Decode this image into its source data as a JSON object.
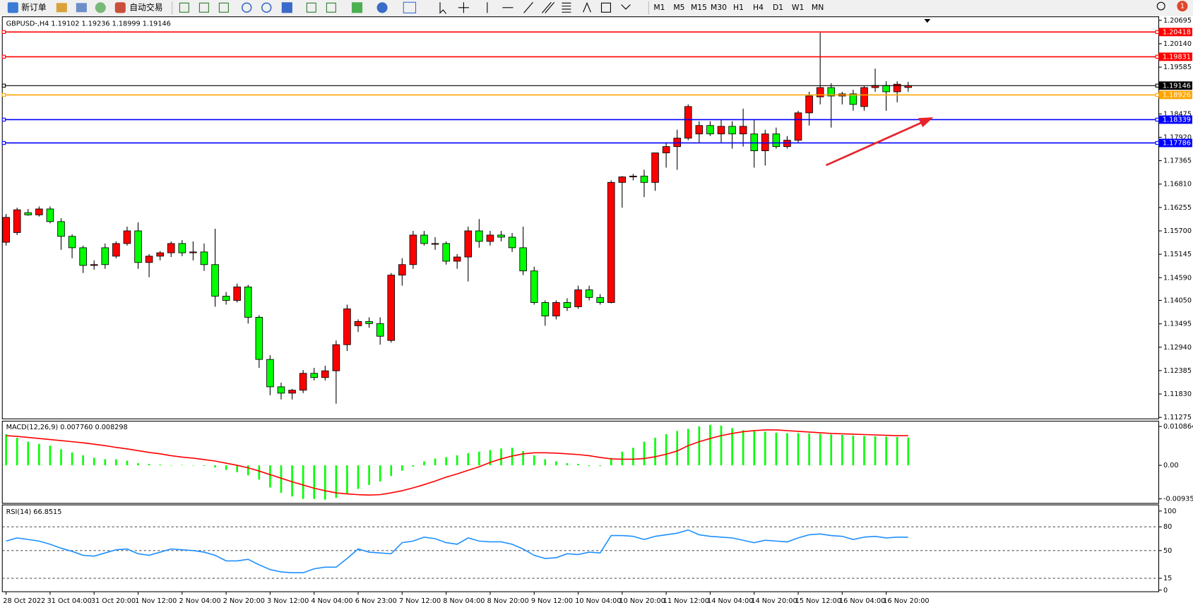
{
  "toolbar": {
    "new_order": "新订单",
    "auto_trading": "自动交易",
    "timeframes": [
      "M1",
      "M5",
      "M15",
      "M30",
      "H1",
      "H4",
      "D1",
      "W1",
      "MN"
    ],
    "notifications": 1
  },
  "chart_data": [
    {
      "type": "candlestick",
      "title": "GBPUSD-,H4  1.19102 1.19236 1.18999 1.19146",
      "categories": [
        "28 Oct 2022",
        null,
        null,
        null,
        "31 Oct 04:00",
        null,
        null,
        null,
        "31 Oct 20:00",
        null,
        null,
        null,
        "1 Nov 12:00",
        null,
        null,
        null,
        "2 Nov 04:00",
        null,
        null,
        null,
        "2 Nov 20:00",
        null,
        null,
        null,
        "3 Nov 12:00",
        null,
        null,
        null,
        "4 Nov 04:00",
        null,
        null,
        null,
        "6 Nov 23:00",
        null,
        null,
        null,
        "7 Nov 12:00",
        null,
        null,
        null,
        "8 Nov 04:00",
        null,
        null,
        null,
        "8 Nov 20:00",
        null,
        null,
        null,
        "9 Nov 12:00",
        null,
        null,
        null,
        "10 Nov 04:00",
        null,
        null,
        null,
        "10 Nov 20:00",
        null,
        null,
        null,
        "11 Nov 12:00",
        null,
        null,
        null,
        "14 Nov 04:00",
        null,
        null,
        null,
        "14 Nov 20:00",
        null,
        null,
        null,
        "15 Nov 12:00",
        null,
        null,
        null,
        "16 Nov 04:00",
        null,
        null,
        null,
        "16 Nov 20:00",
        null,
        null
      ],
      "open": [
        1.1543,
        1.1566,
        1.1613,
        1.1608,
        1.1622,
        1.1592,
        1.1557,
        1.153,
        1.1488,
        1.153,
        1.151,
        1.154,
        1.157,
        1.1495,
        1.151,
        1.1518,
        1.154,
        1.1518,
        1.152,
        1.149,
        1.1415,
        1.1405,
        1.1437,
        1.1365,
        1.1265,
        1.12,
        1.1185,
        1.1192,
        1.1232,
        1.1222,
        1.1238,
        1.13,
        1.1345,
        1.1355,
        1.135,
        1.131,
        1.1465,
        1.149,
        1.156,
        1.154,
        1.154,
        1.1498,
        1.1508,
        1.157,
        1.1545,
        1.156,
        1.1555,
        1.153,
        1.1475,
        1.14,
        1.1368,
        1.14,
        1.139,
        1.143,
        1.1412,
        1.14,
        1.1685,
        1.1698,
        1.17,
        1.1685,
        1.1755,
        1.177,
        1.179,
        1.18,
        1.182,
        1.18,
        1.1818,
        1.18,
        1.18,
        1.176,
        1.18,
        1.177,
        1.1785,
        1.185,
        1.1888,
        1.191,
        1.189,
        1.1895,
        1.1865,
        1.191,
        1.1915,
        1.19,
        1.19102
      ],
      "high": [
        1.161,
        1.1625,
        1.1622,
        1.1628,
        1.1628,
        1.16,
        1.1562,
        1.1535,
        1.15,
        1.154,
        1.1545,
        1.158,
        1.159,
        1.1515,
        1.1522,
        1.1545,
        1.1548,
        1.1545,
        1.154,
        1.1575,
        1.1425,
        1.1445,
        1.1442,
        1.137,
        1.1275,
        1.121,
        1.1195,
        1.124,
        1.1245,
        1.125,
        1.131,
        1.1395,
        1.136,
        1.1365,
        1.1365,
        1.147,
        1.1505,
        1.157,
        1.157,
        1.1555,
        1.1545,
        1.1515,
        1.158,
        1.1598,
        1.157,
        1.157,
        1.1565,
        1.158,
        1.1485,
        1.1405,
        1.1405,
        1.141,
        1.144,
        1.144,
        1.142,
        1.169,
        1.17,
        1.1705,
        1.1715,
        1.1755,
        1.178,
        1.181,
        1.187,
        1.183,
        1.183,
        1.1835,
        1.183,
        1.186,
        1.1835,
        1.181,
        1.1815,
        1.1795,
        1.1855,
        1.19,
        1.204,
        1.192,
        1.19,
        1.1905,
        1.1915,
        1.1955,
        1.1925,
        1.1925,
        1.19236
      ],
      "low": [
        1.1535,
        1.156,
        1.1606,
        1.1604,
        1.1588,
        1.1525,
        1.1505,
        1.147,
        1.1478,
        1.148,
        1.1505,
        1.1535,
        1.148,
        1.146,
        1.15,
        1.1508,
        1.151,
        1.15,
        1.1475,
        1.139,
        1.1395,
        1.14,
        1.135,
        1.1245,
        1.118,
        1.117,
        1.117,
        1.1185,
        1.1215,
        1.1215,
        1.116,
        1.1285,
        1.133,
        1.134,
        1.13,
        1.1305,
        1.144,
        1.148,
        1.1535,
        1.1525,
        1.149,
        1.148,
        1.145,
        1.153,
        1.1535,
        1.1545,
        1.152,
        1.1465,
        1.1395,
        1.1345,
        1.136,
        1.138,
        1.1385,
        1.1405,
        1.1395,
        1.1398,
        1.1625,
        1.169,
        1.165,
        1.1665,
        1.172,
        1.1715,
        1.1785,
        1.178,
        1.1795,
        1.178,
        1.1765,
        1.177,
        1.172,
        1.1725,
        1.1765,
        1.1765,
        1.178,
        1.182,
        1.187,
        1.1815,
        1.187,
        1.1855,
        1.1855,
        1.19,
        1.1855,
        1.1875,
        1.18999
      ],
      "close": [
        1.1602,
        1.162,
        1.1608,
        1.1622,
        1.1592,
        1.1557,
        1.153,
        1.1488,
        1.149,
        1.149,
        1.154,
        1.157,
        1.1495,
        1.151,
        1.1518,
        1.154,
        1.1518,
        1.152,
        1.149,
        1.1415,
        1.1405,
        1.1437,
        1.1365,
        1.1265,
        1.12,
        1.1185,
        1.1192,
        1.1232,
        1.1222,
        1.1238,
        1.13,
        1.1385,
        1.1355,
        1.135,
        1.132,
        1.1465,
        1.149,
        1.156,
        1.154,
        1.154,
        1.1498,
        1.1508,
        1.157,
        1.1545,
        1.156,
        1.1555,
        1.153,
        1.1475,
        1.14,
        1.1368,
        1.14,
        1.1388,
        1.143,
        1.1412,
        1.14,
        1.1685,
        1.1698,
        1.17,
        1.1685,
        1.1755,
        1.177,
        1.179,
        1.1865,
        1.182,
        1.18,
        1.1818,
        1.18,
        1.1818,
        1.176,
        1.18,
        1.177,
        1.1785,
        1.185,
        1.189,
        1.191,
        1.189,
        1.1895,
        1.187,
        1.191,
        1.1915,
        1.19,
        1.1918,
        1.19146
      ],
      "up_color": "#ff0000",
      "down_color": "#00ff00",
      "ylim": [
        1.1124,
        1.2078
      ],
      "yticks": [
        1.20695,
        {
          "value": 1.2014,
          "label": "1.20140"
        },
        1.19585,
        1.18475,
        {
          "value": 1.1792,
          "label": "1.17920"
        },
        1.17365,
        {
          "value": 1.1681,
          "label": "1.16810"
        },
        1.16255,
        {
          "value": 1.157,
          "label": "1.15700"
        },
        1.15145,
        {
          "value": 1.1459,
          "label": "1.14590"
        },
        {
          "value": 1.1405,
          "label": "1.14050"
        },
        1.13495,
        {
          "value": 1.1294,
          "label": "1.12940"
        },
        1.12385,
        {
          "value": 1.1183,
          "label": "1.11830"
        },
        1.11275
      ],
      "levels": [
        {
          "value": 1.20418,
          "color": "#ff0000"
        },
        {
          "value": 1.19831,
          "color": "#ff0000"
        },
        {
          "value": 1.19146,
          "color": "#000000"
        },
        {
          "value": 1.18926,
          "color": "#ffa500"
        },
        {
          "value": 1.18339,
          "color": "#0000ff"
        },
        {
          "value": 1.17786,
          "color": "#0000ff"
        }
      ]
    },
    {
      "type": "macd",
      "title": "MACD(12,26,9) 0.007760 0.008298",
      "series": [
        {
          "type": "bar",
          "color": "#00ff00",
          "values": [
            0.0087,
            0.0077,
            0.0066,
            0.006,
            0.0055,
            0.0045,
            0.0036,
            0.0028,
            0.0021,
            0.0017,
            0.0017,
            0.0013,
            0.0006,
            0.0004,
            0.0002,
            0,
            0.0001,
            -0.0001,
            -0.0002,
            -0.0006,
            -0.0013,
            -0.0019,
            -0.0028,
            -0.004,
            -0.0062,
            -0.0077,
            -0.0087,
            -0.0094,
            -0.0094,
            -0.0096,
            -0.0091,
            -0.0079,
            -0.0066,
            -0.0055,
            -0.0045,
            -0.003,
            -0.0015,
            -0.0004,
            0.0011,
            0.0019,
            0.0023,
            0.0028,
            0.0034,
            0.0038,
            0.0043,
            0.0047,
            0.0049,
            0.004,
            0.0028,
            0.0017,
            0.0011,
            0.0006,
            0.0004,
            -0.0002,
            -0.0002,
            0.0021,
            0.0038,
            0.0049,
            0.0066,
            0.0077,
            0.0087,
            0.0096,
            0.0102,
            0.0109,
            0.0113,
            0.0111,
            0.0104,
            0.0098,
            0.0096,
            0.0094,
            0.0091,
            0.009,
            0.009,
            0.0089,
            0.0088,
            0.0086,
            0.0085,
            0.0083,
            0.0082,
            0.0081,
            0.008,
            0.0079,
            0.00776
          ]
        },
        {
          "type": "line",
          "color": "#ff0000",
          "values": [
            0.0083,
            0.0081,
            0.0078,
            0.0075,
            0.0072,
            0.0069,
            0.0066,
            0.0063,
            0.0059,
            0.0055,
            0.005,
            0.0046,
            0.0041,
            0.0036,
            0.0032,
            0.0027,
            0.0023,
            0.002,
            0.0016,
            0.0012,
            0.0006,
            0,
            -0.0007,
            -0.0016,
            -0.0026,
            -0.0036,
            -0.0046,
            -0.0055,
            -0.0064,
            -0.0071,
            -0.0077,
            -0.008,
            -0.0082,
            -0.0083,
            -0.0082,
            -0.0077,
            -0.0071,
            -0.0063,
            -0.0054,
            -0.0044,
            -0.0033,
            -0.0024,
            -0.0014,
            -0.0004,
            0.0008,
            0.0018,
            0.0026,
            0.0032,
            0.0035,
            0.0035,
            0.0034,
            0.0032,
            0.003,
            0.0027,
            0.0022,
            0.0018,
            0.0017,
            0.0017,
            0.0019,
            0.0024,
            0.0031,
            0.004,
            0.0055,
            0.0066,
            0.0075,
            0.0083,
            0.0089,
            0.0094,
            0.0097,
            0.0099,
            0.0099,
            0.0097,
            0.0095,
            0.0093,
            0.0091,
            0.0089,
            0.0088,
            0.0087,
            0.0086,
            0.0085,
            0.0084,
            0.0083,
            0.008298
          ]
        }
      ],
      "ylim": [
        -0.01064,
        0.01235
      ],
      "yticks": [
        0.010864,
        {
          "value": 0,
          "label": "0.00"
        },
        -0.009358
      ]
    },
    {
      "type": "line",
      "title": "RSI(14) 66.8515",
      "color": "#1e90ff",
      "values": [
        62,
        66,
        64,
        62,
        58,
        53,
        49,
        44,
        43,
        47,
        51,
        52,
        46,
        44,
        48,
        52,
        51,
        50,
        48,
        44,
        37,
        37,
        39,
        32,
        26,
        23,
        22,
        22,
        27,
        29,
        29,
        40,
        52,
        48,
        47,
        46,
        60,
        62,
        67,
        65,
        60,
        58,
        66,
        62,
        61,
        61,
        58,
        52,
        44,
        40,
        41,
        46,
        45,
        48,
        47,
        69,
        69,
        68,
        64,
        68,
        70,
        72,
        76,
        70,
        68,
        67,
        66,
        63,
        60,
        63,
        62,
        61,
        66,
        70,
        71,
        69,
        68,
        64,
        67,
        68,
        66,
        67,
        66.8515
      ],
      "ylim": [
        -2,
        107.7
      ],
      "yticks": [
        100,
        80,
        50,
        15,
        0
      ]
    }
  ]
}
